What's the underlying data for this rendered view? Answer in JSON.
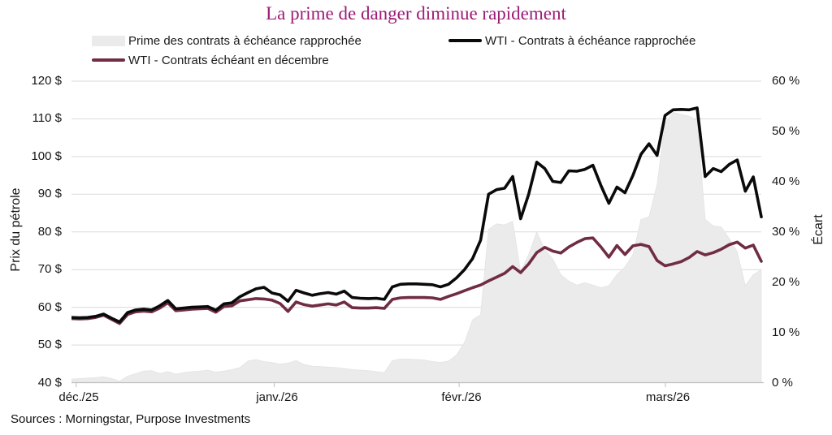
{
  "title": "La prime de danger diminue rapidement",
  "source": "Sources : Morningstar, Purpose Investments",
  "legend": {
    "items": [
      {
        "label": "Prime des contrats à échéance rapprochée",
        "swatch": "area",
        "color": "#EBEBEB"
      },
      {
        "label": "WTI - Contrats à échéance rapprochée",
        "swatch": "line",
        "color": "#0A0A0A"
      },
      {
        "label": "WTI - Contrats échéant en décembre",
        "swatch": "line",
        "color": "#702C44"
      }
    ]
  },
  "chart_data": {
    "type": "line",
    "title": "La prime de danger diminue rapidement",
    "grid": true,
    "legend_position": "top",
    "x_axis": {
      "tick_labels": [
        "déc./25",
        "janv./26",
        "févr./26",
        "mars/26"
      ],
      "tick_positions": [
        0.007,
        0.294,
        0.562,
        0.861
      ]
    },
    "left_axis": {
      "label": "Prix du pétrole",
      "unit": "$",
      "min": 40,
      "max": 120,
      "step": 10,
      "tick_labels": [
        "120 $",
        "110 $",
        "100 $",
        "90 $",
        "80 $",
        "70 $",
        "60 $",
        "50 $",
        "40 $"
      ]
    },
    "right_axis": {
      "label": "Écart",
      "unit": "%",
      "min": 0,
      "max": 60,
      "step": 10,
      "tick_labels": [
        "60 %",
        "50 %",
        "40 %",
        "30 %",
        "20 %",
        "10 %",
        "0 %"
      ]
    },
    "series": [
      {
        "name": "WTI - Contrats à échéance rapprochée",
        "type": "line",
        "axis": "left",
        "color": "#0A0A0A",
        "values": [
          57.3,
          57.2,
          57.3,
          57.6,
          58.2,
          57.1,
          56.1,
          58.6,
          59.3,
          59.5,
          59.3,
          60.4,
          61.8,
          59.6,
          59.8,
          60.0,
          60.1,
          60.2,
          59.2,
          60.9,
          61.2,
          62.8,
          63.9,
          64.9,
          65.3,
          63.8,
          63.3,
          61.6,
          64.5,
          63.8,
          63.2,
          63.6,
          63.9,
          63.5,
          64.3,
          62.6,
          62.4,
          62.3,
          62.4,
          62.1,
          65.4,
          66.1,
          66.2,
          66.2,
          66.1,
          66.0,
          65.4,
          66.1,
          67.8,
          70.0,
          72.9,
          77.8,
          90.0,
          91.2,
          91.6,
          94.7,
          83.5,
          90.0,
          98.5,
          96.8,
          93.4,
          93.1,
          96.2,
          96.1,
          96.6,
          97.7,
          92.3,
          87.6,
          91.9,
          90.4,
          95.0,
          100.6,
          103.4,
          100.3,
          110.9,
          112.4,
          112.5,
          112.4,
          112.9,
          94.7,
          96.8,
          96.0,
          97.9,
          99.1,
          90.8,
          94.6,
          84.0
        ]
      },
      {
        "name": "WTI - Contrats échéant en décembre",
        "type": "line",
        "axis": "left",
        "color": "#702C44",
        "values": [
          57.0,
          56.9,
          57.0,
          57.3,
          57.9,
          56.8,
          55.7,
          58.1,
          58.8,
          59.0,
          58.8,
          59.8,
          61.2,
          59.1,
          59.3,
          59.5,
          59.6,
          59.7,
          58.7,
          60.2,
          60.4,
          61.7,
          62.0,
          62.3,
          62.2,
          61.9,
          61.0,
          58.9,
          61.4,
          60.7,
          60.3,
          60.6,
          60.9,
          60.6,
          61.4,
          59.9,
          59.8,
          59.8,
          59.9,
          59.7,
          62.1,
          62.5,
          62.6,
          62.6,
          62.6,
          62.5,
          62.1,
          62.9,
          63.6,
          64.4,
          65.2,
          65.9,
          67.0,
          68.0,
          69.0,
          70.8,
          69.2,
          71.5,
          74.5,
          75.9,
          74.9,
          74.4,
          76.0,
          77.2,
          78.2,
          78.4,
          76.0,
          73.3,
          76.4,
          74.0,
          76.3,
          76.7,
          76.1,
          72.4,
          71.0,
          71.5,
          72.1,
          73.2,
          74.8,
          73.9,
          74.5,
          75.4,
          76.6,
          77.3,
          75.7,
          76.5,
          72.2
        ]
      },
      {
        "name": "Prime des contrats à échéance rapprochée",
        "type": "area",
        "axis": "right",
        "color": "#EBEBEB",
        "values": [
          0.7,
          0.8,
          0.9,
          1.0,
          1.2,
          0.8,
          0.3,
          1.3,
          1.8,
          2.3,
          2.4,
          1.8,
          2.2,
          1.7,
          2.0,
          2.2,
          2.3,
          2.5,
          2.1,
          2.3,
          2.6,
          3.0,
          4.3,
          4.6,
          4.2,
          4.0,
          3.7,
          3.9,
          4.4,
          3.6,
          3.3,
          3.2,
          3.1,
          3.0,
          2.8,
          2.6,
          2.5,
          2.4,
          2.2,
          2.0,
          4.4,
          4.7,
          4.7,
          4.6,
          4.5,
          4.2,
          4.0,
          4.3,
          5.5,
          8.0,
          12.5,
          13.5,
          30.5,
          31.6,
          31.4,
          32.1,
          22.0,
          25.5,
          30.0,
          26.5,
          24.6,
          21.5,
          20.2,
          19.4,
          19.9,
          19.4,
          18.9,
          19.3,
          21.5,
          23.0,
          25.5,
          32.5,
          33.0,
          39.4,
          51.5,
          53.8,
          53.4,
          53.0,
          52.2,
          32.5,
          31.2,
          31.0,
          28.7,
          26.0,
          19.3,
          21.5,
          22.5
        ]
      }
    ],
    "colors": {
      "gridline": "#D9D9D9",
      "axis_line": "#BFBFBF",
      "title": "#9C1B75"
    }
  }
}
